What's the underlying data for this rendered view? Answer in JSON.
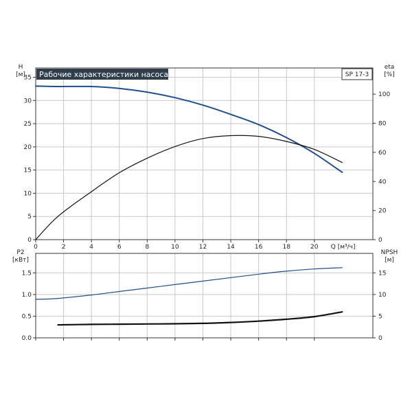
{
  "chart_data": [
    {
      "type": "line",
      "title": "Рабочие характеристики насоса",
      "model": "SP 17-3",
      "x": {
        "label": "Q [м³/ч]",
        "min": 0,
        "max": 24.2,
        "ticks": [
          0,
          2,
          4,
          6,
          8,
          10,
          12,
          14,
          16,
          18,
          20
        ]
      },
      "y_left": {
        "label_line1": "H",
        "label_line2": "[м]",
        "min": 0,
        "max": 37,
        "ticks": [
          0,
          5,
          10,
          15,
          20,
          25,
          30,
          35
        ]
      },
      "y_right": {
        "label_line1": "eta",
        "label_line2": "[%]",
        "min": 0,
        "max": 118,
        "ticks": [
          0,
          20,
          40,
          60,
          80,
          100
        ]
      },
      "grid": true,
      "series": [
        {
          "key": "H",
          "axis": "left",
          "color": "#1f4e8c",
          "x": [
            0,
            1.6,
            4,
            6,
            8,
            10,
            12,
            14,
            16,
            18,
            20,
            22
          ],
          "y": [
            33.1,
            33.0,
            33.0,
            32.6,
            31.8,
            30.6,
            29.0,
            27.0,
            24.8,
            22.0,
            18.6,
            14.5
          ]
        },
        {
          "key": "eta",
          "axis": "right",
          "color": "#111111",
          "x": [
            0,
            1.6,
            4,
            6,
            8,
            10,
            12,
            14,
            16,
            18,
            20,
            22
          ],
          "y": [
            0,
            16,
            33,
            46,
            56,
            64,
            69.5,
            71.5,
            71,
            67.5,
            62,
            53
          ]
        }
      ]
    },
    {
      "type": "line",
      "x": {
        "min": 0,
        "max": 24.2,
        "ticks": [
          0,
          2,
          4,
          6,
          8,
          10,
          12,
          14,
          16,
          18,
          20
        ]
      },
      "y_left": {
        "label_line1": "P2",
        "label_line2": "[кВт]",
        "min": 0,
        "max": 1.95,
        "ticks": [
          "0.0",
          "0.5",
          "1.0",
          "1.5"
        ]
      },
      "y_right": {
        "label_line1": "NPSH",
        "label_line2": "[м]",
        "min": 0,
        "max": 19.5,
        "ticks": [
          0,
          5,
          10,
          15
        ]
      },
      "grid": true,
      "series": [
        {
          "key": "P2",
          "axis": "left",
          "color": "#1f4e8c",
          "x": [
            0,
            1.6,
            4,
            6,
            8,
            10,
            12,
            14,
            16,
            18,
            20,
            22
          ],
          "y": [
            0.89,
            0.91,
            0.99,
            1.07,
            1.15,
            1.23,
            1.31,
            1.39,
            1.47,
            1.54,
            1.59,
            1.62
          ]
        },
        {
          "key": "NPSH",
          "axis": "right",
          "color": "#111111",
          "x": [
            1.6,
            4,
            6,
            8,
            10,
            12,
            14,
            16,
            18,
            20,
            22
          ],
          "y": [
            3.0,
            3.1,
            3.15,
            3.2,
            3.25,
            3.35,
            3.55,
            3.85,
            4.3,
            4.9,
            6.0
          ]
        }
      ]
    }
  ]
}
